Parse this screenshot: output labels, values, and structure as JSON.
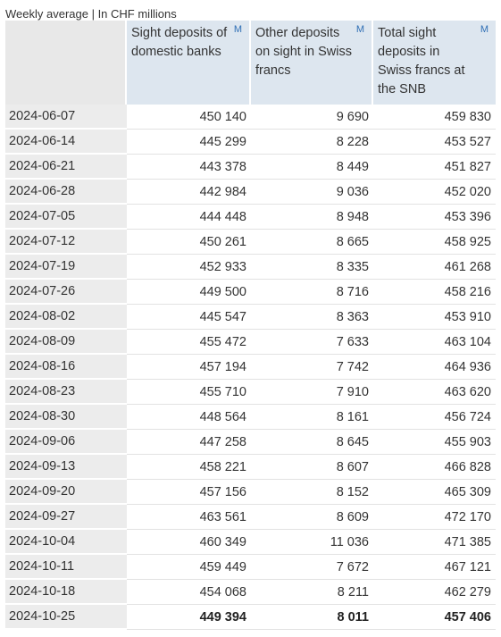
{
  "caption": "Weekly average | In CHF millions",
  "columns": [
    {
      "label": "Sight deposits of domestic banks",
      "badge": "M"
    },
    {
      "label": "Other deposits on sight in Swiss francs",
      "badge": "M"
    },
    {
      "label": "Total sight deposits in Swiss francs at the SNB",
      "badge": "M"
    }
  ],
  "rows": [
    {
      "date": "2024-06-07",
      "values": [
        "450 140",
        "9 690",
        "459 830"
      ]
    },
    {
      "date": "2024-06-14",
      "values": [
        "445 299",
        "8 228",
        "453 527"
      ]
    },
    {
      "date": "2024-06-21",
      "values": [
        "443 378",
        "8 449",
        "451 827"
      ]
    },
    {
      "date": "2024-06-28",
      "values": [
        "442 984",
        "9 036",
        "452 020"
      ]
    },
    {
      "date": "2024-07-05",
      "values": [
        "444 448",
        "8 948",
        "453 396"
      ]
    },
    {
      "date": "2024-07-12",
      "values": [
        "450 261",
        "8 665",
        "458 925"
      ]
    },
    {
      "date": "2024-07-19",
      "values": [
        "452 933",
        "8 335",
        "461 268"
      ]
    },
    {
      "date": "2024-07-26",
      "values": [
        "449 500",
        "8 716",
        "458 216"
      ]
    },
    {
      "date": "2024-08-02",
      "values": [
        "445 547",
        "8 363",
        "453 910"
      ]
    },
    {
      "date": "2024-08-09",
      "values": [
        "455 472",
        "7 633",
        "463 104"
      ]
    },
    {
      "date": "2024-08-16",
      "values": [
        "457 194",
        "7 742",
        "464 936"
      ]
    },
    {
      "date": "2024-08-23",
      "values": [
        "455 710",
        "7 910",
        "463 620"
      ]
    },
    {
      "date": "2024-08-30",
      "values": [
        "448 564",
        "8 161",
        "456 724"
      ]
    },
    {
      "date": "2024-09-06",
      "values": [
        "447 258",
        "8 645",
        "455 903"
      ]
    },
    {
      "date": "2024-09-13",
      "values": [
        "458 221",
        "8 607",
        "466 828"
      ]
    },
    {
      "date": "2024-09-20",
      "values": [
        "457 156",
        "8 152",
        "465 309"
      ]
    },
    {
      "date": "2024-09-27",
      "values": [
        "463 561",
        "8 609",
        "472 170"
      ]
    },
    {
      "date": "2024-10-04",
      "values": [
        "460 349",
        "11 036",
        "471 385"
      ]
    },
    {
      "date": "2024-10-11",
      "values": [
        "459 449",
        "7 672",
        "467 121"
      ]
    },
    {
      "date": "2024-10-18",
      "values": [
        "454 068",
        "8 211",
        "462 279"
      ]
    },
    {
      "date": "2024-10-25",
      "values": [
        "449 394",
        "8 011",
        "457 406"
      ]
    }
  ]
}
